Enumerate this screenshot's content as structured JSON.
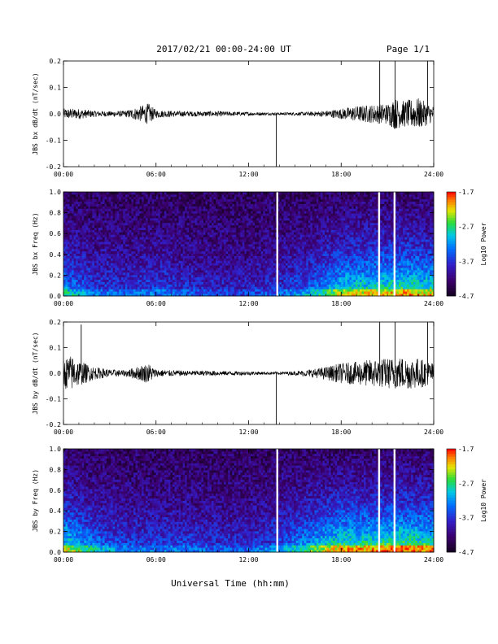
{
  "header": {
    "date_range": "2017/02/21  00:00-24:00 UT",
    "page": "Page 1/1"
  },
  "x_axis_label": "Universal Time (hh:mm)",
  "x_ticks": [
    "00:00",
    "06:00",
    "12:00",
    "18:00",
    "24:00"
  ],
  "chart_data": [
    {
      "type": "line",
      "ylabel": "JBS bx dB/dt (nT/sec)",
      "xlim_hours": [
        0,
        24
      ],
      "ylim": [
        -0.2,
        0.2
      ],
      "yticks": [
        "0.2",
        "0.1",
        "0.0",
        "-0.1",
        "-0.2"
      ],
      "envelope_hours": [
        0,
        1,
        2,
        3,
        4,
        5,
        5.5,
        6,
        7,
        8,
        9,
        10,
        11,
        12,
        13,
        14,
        15,
        16,
        17,
        18,
        19,
        20,
        21,
        21.5,
        22,
        23,
        24
      ],
      "envelope_amp": [
        0.02,
        0.02,
        0.012,
        0.01,
        0.012,
        0.03,
        0.04,
        0.015,
        0.012,
        0.01,
        0.01,
        0.01,
        0.008,
        0.007,
        0.006,
        0.005,
        0.006,
        0.008,
        0.012,
        0.02,
        0.03,
        0.035,
        0.04,
        0.06,
        0.05,
        0.06,
        0.03
      ],
      "spikes": [
        {
          "t": 13.8,
          "v": -0.21
        },
        {
          "t": 20.5,
          "v": 0.21
        },
        {
          "t": 21.5,
          "v": 0.21
        },
        {
          "t": 23.6,
          "v": 0.21
        }
      ]
    },
    {
      "type": "heatmap",
      "ylabel": "JBS bx Freq (Hz)",
      "xlim_hours": [
        0,
        24
      ],
      "ylim": [
        0,
        1.0
      ],
      "yticks": [
        "1.0",
        "0.8",
        "0.6",
        "0.4",
        "0.2",
        "0.0"
      ],
      "colorbar": {
        "label": "Log10 Power",
        "ticks": [
          "-1.7",
          "-2.7",
          "-3.7",
          "-4.7"
        ]
      },
      "gaps_hours": [
        13.85,
        20.45,
        21.45
      ],
      "activity_hours": [
        0,
        2,
        4,
        6,
        8,
        10,
        12,
        14,
        16,
        18,
        20,
        22,
        24
      ],
      "activity_level": [
        0.55,
        0.35,
        0.3,
        0.35,
        0.3,
        0.25,
        0.25,
        0.3,
        0.45,
        0.7,
        0.75,
        0.8,
        0.75
      ]
    },
    {
      "type": "line",
      "ylabel": "JBS by dB/dt (nT/sec)",
      "xlim_hours": [
        0,
        24
      ],
      "ylim": [
        -0.2,
        0.2
      ],
      "yticks": [
        "0.2",
        "0.1",
        "0.0",
        "-0.1",
        "-0.2"
      ],
      "envelope_hours": [
        0,
        0.5,
        1,
        2,
        3,
        4,
        5,
        5.5,
        6,
        7,
        8,
        9,
        10,
        11,
        12,
        13,
        14,
        15,
        16,
        17,
        18,
        19,
        20,
        21,
        22,
        23,
        24
      ],
      "envelope_amp": [
        0.06,
        0.07,
        0.05,
        0.025,
        0.015,
        0.012,
        0.03,
        0.04,
        0.015,
        0.012,
        0.01,
        0.01,
        0.01,
        0.008,
        0.008,
        0.006,
        0.006,
        0.008,
        0.015,
        0.025,
        0.04,
        0.045,
        0.055,
        0.06,
        0.065,
        0.06,
        0.04
      ],
      "spikes": [
        {
          "t": 1.15,
          "v": 0.19
        },
        {
          "t": 13.8,
          "v": -0.21
        },
        {
          "t": 20.5,
          "v": 0.21
        },
        {
          "t": 21.5,
          "v": 0.21
        },
        {
          "t": 23.6,
          "v": 0.21
        }
      ]
    },
    {
      "type": "heatmap",
      "ylabel": "JBS by Freq (Hz)",
      "xlim_hours": [
        0,
        24
      ],
      "ylim": [
        0,
        1.0
      ],
      "yticks": [
        "1.0",
        "0.8",
        "0.6",
        "0.4",
        "0.2",
        "0.0"
      ],
      "colorbar": {
        "label": "Log10 Power",
        "ticks": [
          "-1.7",
          "-2.7",
          "-3.7",
          "-4.7"
        ]
      },
      "gaps_hours": [
        13.85,
        20.45,
        21.45
      ],
      "activity_hours": [
        0,
        2,
        4,
        6,
        8,
        10,
        12,
        14,
        16,
        18,
        20,
        22,
        24
      ],
      "activity_level": [
        0.75,
        0.5,
        0.35,
        0.35,
        0.35,
        0.3,
        0.3,
        0.4,
        0.6,
        0.8,
        0.8,
        0.85,
        0.8
      ]
    }
  ]
}
